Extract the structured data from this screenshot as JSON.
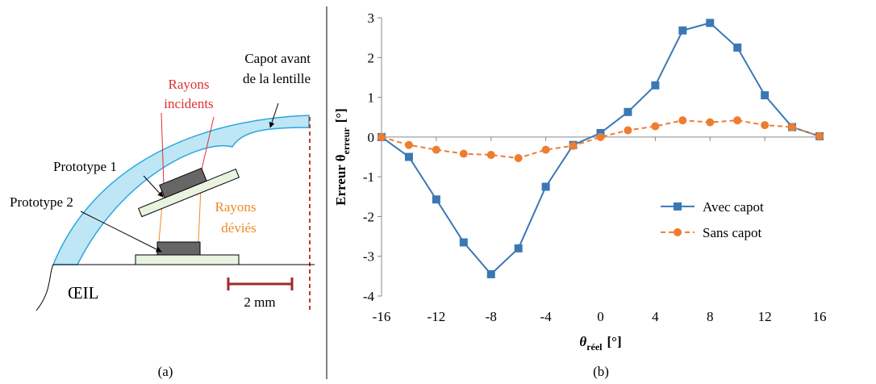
{
  "diagram": {
    "capot_label": [
      "Capot avant",
      "de la lentille"
    ],
    "rays_incident_label": [
      "Rayons",
      "incidents"
    ],
    "rays_deviated_label": [
      "Rayons",
      "déviés"
    ],
    "prototype_1": "Prototype 1",
    "prototype_2": "Prototype 2",
    "eye": "ŒIL",
    "scale_bar": "2 mm"
  },
  "captions": [
    "(a)",
    "(b)"
  ],
  "chart_data": {
    "type": "line",
    "y_label": {
      "main": "Erreur θ",
      "sub": "erreur",
      "unit": "[°]"
    },
    "x_label": {
      "main": "θ",
      "sub": "réel",
      "unit": "[°]"
    },
    "x": [
      -16,
      -14,
      -12,
      -10,
      -8,
      -6,
      -4,
      -2,
      0,
      2,
      4,
      6,
      8,
      10,
      12,
      14,
      16
    ],
    "series": [
      {
        "name": "Avec capot",
        "color": "#3a78b5",
        "marker": "square",
        "dashed": false,
        "values": [
          0,
          -0.5,
          -1.57,
          -2.65,
          -3.45,
          -2.8,
          -1.25,
          -0.2,
          0.1,
          0.63,
          1.3,
          2.68,
          2.87,
          2.25,
          1.05,
          0.25,
          0.02
        ]
      },
      {
        "name": "Sans capot",
        "color": "#ed7d31",
        "marker": "circle",
        "dashed": true,
        "values": [
          0,
          -0.2,
          -0.32,
          -0.42,
          -0.45,
          -0.53,
          -0.32,
          -0.22,
          0,
          0.17,
          0.27,
          0.42,
          0.37,
          0.42,
          0.3,
          0.25,
          0.02
        ]
      }
    ],
    "xlim": [
      -16,
      16
    ],
    "xticks": [
      -16,
      -12,
      -8,
      -4,
      0,
      4,
      8,
      12,
      16
    ],
    "ylim": [
      -4,
      3
    ],
    "yticks": [
      -4,
      -3,
      -2,
      -1,
      0,
      1,
      2,
      3
    ],
    "legend": "lower right"
  }
}
